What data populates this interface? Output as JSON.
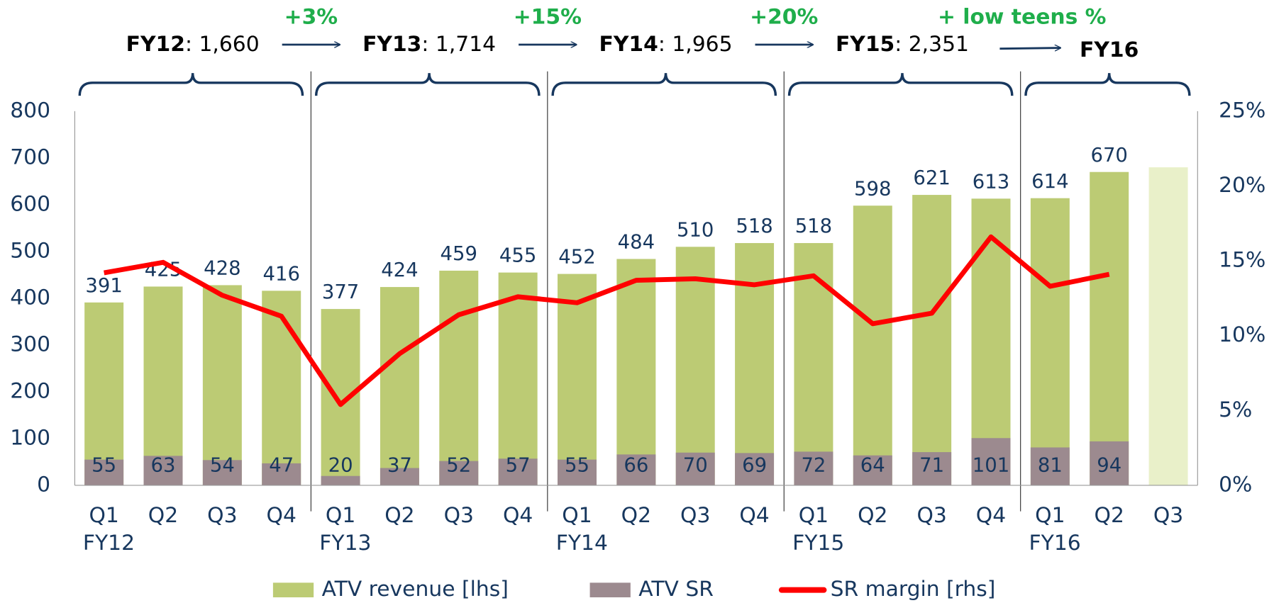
{
  "chart_data": {
    "type": "bar",
    "categories": [
      "Q1",
      "Q2",
      "Q3",
      "Q4",
      "Q1",
      "Q2",
      "Q3",
      "Q4",
      "Q1",
      "Q2",
      "Q3",
      "Q4",
      "Q1",
      "Q2",
      "Q3",
      "Q4",
      "Q1",
      "Q2",
      "Q3"
    ],
    "category_years": [
      "FY12",
      null,
      null,
      null,
      "FY13",
      null,
      null,
      null,
      "FY14",
      null,
      null,
      null,
      "FY15",
      null,
      null,
      null,
      "FY16",
      null,
      null
    ],
    "series": [
      {
        "name": "ATV revenue [lhs]",
        "kind": "bar",
        "color": "#bccb74",
        "values": [
          391,
          425,
          428,
          416,
          377,
          424,
          459,
          455,
          452,
          484,
          510,
          518,
          518,
          598,
          621,
          613,
          614,
          670,
          null
        ]
      },
      {
        "name": "ATV SR",
        "kind": "bar",
        "color": "#9c8a8f",
        "values": [
          55,
          63,
          54,
          47,
          20,
          37,
          52,
          57,
          55,
          66,
          70,
          69,
          72,
          64,
          71,
          101,
          81,
          94,
          null
        ]
      },
      {
        "name": "SR margin [rhs]",
        "kind": "line",
        "color": "#ff0000",
        "axis": "y2",
        "values": [
          14.2,
          14.9,
          12.7,
          11.3,
          5.4,
          8.8,
          11.4,
          12.6,
          12.2,
          13.7,
          13.8,
          13.4,
          14.0,
          10.8,
          11.5,
          16.6,
          13.3,
          14.1,
          null
        ]
      },
      {
        "kind": "bar",
        "color": "#e9f0c9",
        "values": [
          null,
          null,
          null,
          null,
          null,
          null,
          null,
          null,
          null,
          null,
          null,
          null,
          null,
          null,
          null,
          null,
          null,
          null,
          680
        ]
      }
    ],
    "ylim": [
      0,
      800
    ],
    "yticks": [
      0,
      100,
      200,
      300,
      400,
      500,
      600,
      700,
      800
    ],
    "y2lim": [
      0,
      25
    ],
    "y2ticks": [
      {
        "value": 0,
        "label": "0%"
      },
      {
        "value": 5,
        "label": "5%"
      },
      {
        "value": 10,
        "label": "10%"
      },
      {
        "value": 15,
        "label": "15%"
      },
      {
        "value": 20,
        "label": "20%"
      },
      {
        "value": 25,
        "label": "25%"
      }
    ],
    "fiscal_years": [
      {
        "name": "FY12",
        "total": ": 1,660"
      },
      {
        "name": "FY13",
        "total": ": 1,714"
      },
      {
        "name": "FY14",
        "total": ": 1,965"
      },
      {
        "name": "FY15",
        "total": ": 2,351"
      },
      {
        "name": "FY16",
        "total": null
      }
    ],
    "growth": [
      "+3%",
      "+15%",
      "+20%",
      "+ low teens %"
    ],
    "legend": "bottom"
  }
}
